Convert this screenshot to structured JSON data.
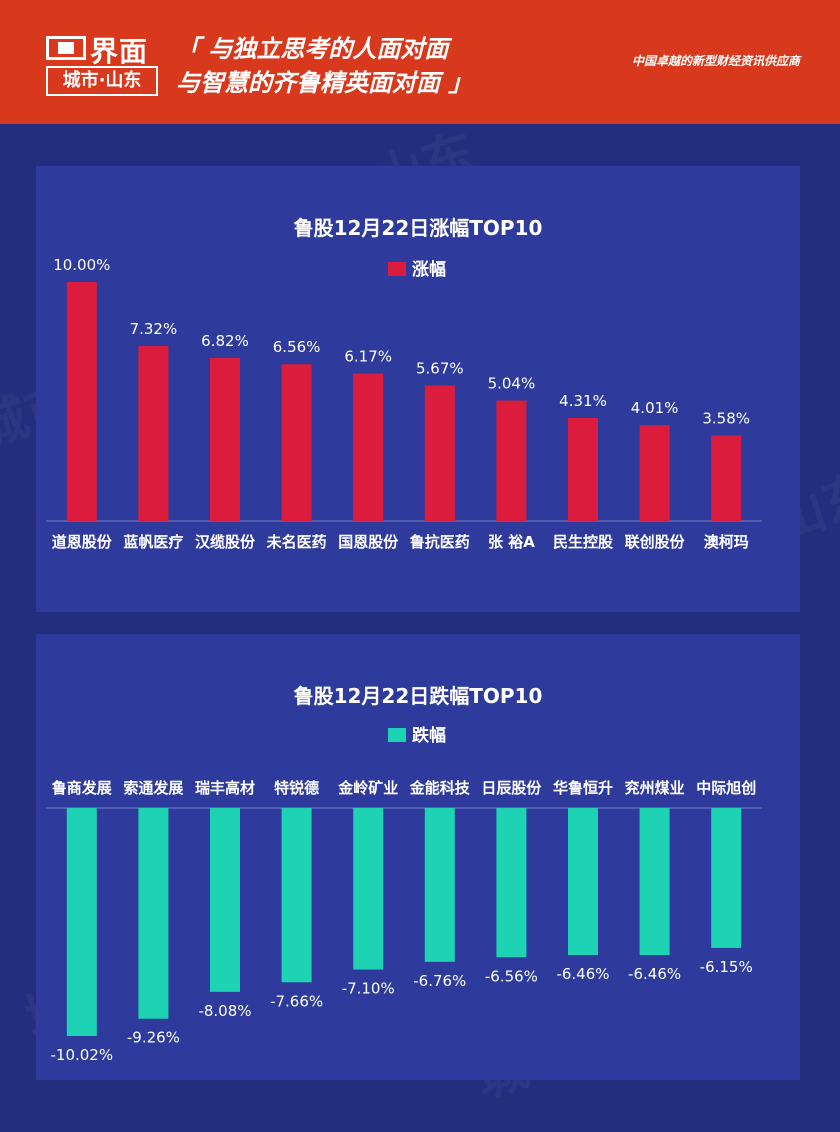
{
  "header": {
    "logo_name": "界面",
    "logo_sub": "城市·山东",
    "slogan_line1": "「 与独立思考的人面对面",
    "slogan_line2": "与智慧的齐鲁精英面对面 」",
    "tagline": "中国卓越的新型财经资讯供应商"
  },
  "watermark_text": "城市·山东",
  "colors": {
    "header": "#d8381c",
    "background": "#232e7e",
    "panel": "#2e3b9c",
    "gain_bar": "#dc1c3c",
    "loss_bar": "#1ed3b4"
  },
  "chart_data": [
    {
      "type": "bar",
      "title": "鲁股12月22日涨幅TOP10",
      "categories": [
        "道恩股份",
        "蓝帆医疗",
        "汉缆股份",
        "未名医药",
        "国恩股份",
        "鲁抗医药",
        "张 裕A",
        "民生控股",
        "联创股份",
        "澳柯玛"
      ],
      "series": [
        {
          "name": "涨幅",
          "values": [
            10.0,
            7.32,
            6.82,
            6.56,
            6.17,
            5.67,
            5.04,
            4.31,
            4.01,
            3.58
          ]
        }
      ],
      "data_labels": [
        "10.00%",
        "7.32%",
        "6.82%",
        "6.56%",
        "6.17%",
        "5.67%",
        "5.04%",
        "4.31%",
        "4.01%",
        "3.58%"
      ],
      "unit": "%",
      "ylim": [
        0,
        10
      ],
      "grid": false,
      "legend": "top-center"
    },
    {
      "type": "bar",
      "title": "鲁股12月22日跌幅TOP10",
      "categories": [
        "鲁商发展",
        "索通发展",
        "瑞丰高材",
        "特锐德",
        "金岭矿业",
        "金能科技",
        "日辰股份",
        "华鲁恒升",
        "兖州煤业",
        "中际旭创"
      ],
      "series": [
        {
          "name": "跌幅",
          "values": [
            -10.02,
            -9.26,
            -8.08,
            -7.66,
            -7.1,
            -6.76,
            -6.56,
            -6.46,
            -6.46,
            -6.15
          ]
        }
      ],
      "data_labels": [
        "-10.02%",
        "-9.26%",
        "-8.08%",
        "-7.66%",
        "-7.10%",
        "-6.76%",
        "-6.56%",
        "-6.46%",
        "-6.46%",
        "-6.15%"
      ],
      "unit": "%",
      "ylim": [
        -10.02,
        0
      ],
      "grid": false,
      "legend": "top-center"
    }
  ]
}
